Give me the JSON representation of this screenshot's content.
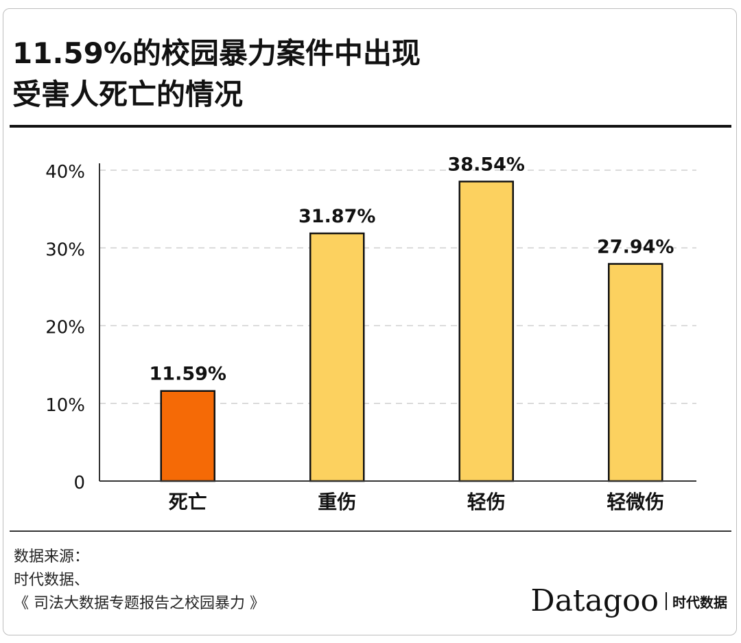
{
  "title_lines": [
    "11.59%的校园暴力案件中出现",
    "受害人死亡的情况"
  ],
  "chart_data": {
    "type": "bar",
    "categories": [
      "死亡",
      "重伤",
      "轻伤",
      "轻微伤"
    ],
    "values": [
      11.59,
      31.87,
      38.54,
      27.94
    ],
    "data_labels": [
      "11.59%",
      "31.87%",
      "38.54%",
      "27.94%"
    ],
    "colors": [
      "#F56A06",
      "#FCD15F",
      "#FCD15F",
      "#FCD15F"
    ],
    "highlight_category": "死亡",
    "ylim": [
      0,
      40
    ],
    "yticks": [
      0,
      10,
      20,
      30,
      40
    ],
    "ytick_labels": [
      "0",
      "10%",
      "20%",
      "30%",
      "40%"
    ],
    "grid": true,
    "title": "11.59%的校园暴力案件中出现受害人死亡的情况",
    "xlabel": "",
    "ylabel": ""
  },
  "source": {
    "lines": [
      "数据来源：",
      "时代数据、",
      "《 司法大数据专题报告之校园暴力 》"
    ]
  },
  "brand": {
    "name": "Datagoo",
    "cn": "时代数据"
  }
}
